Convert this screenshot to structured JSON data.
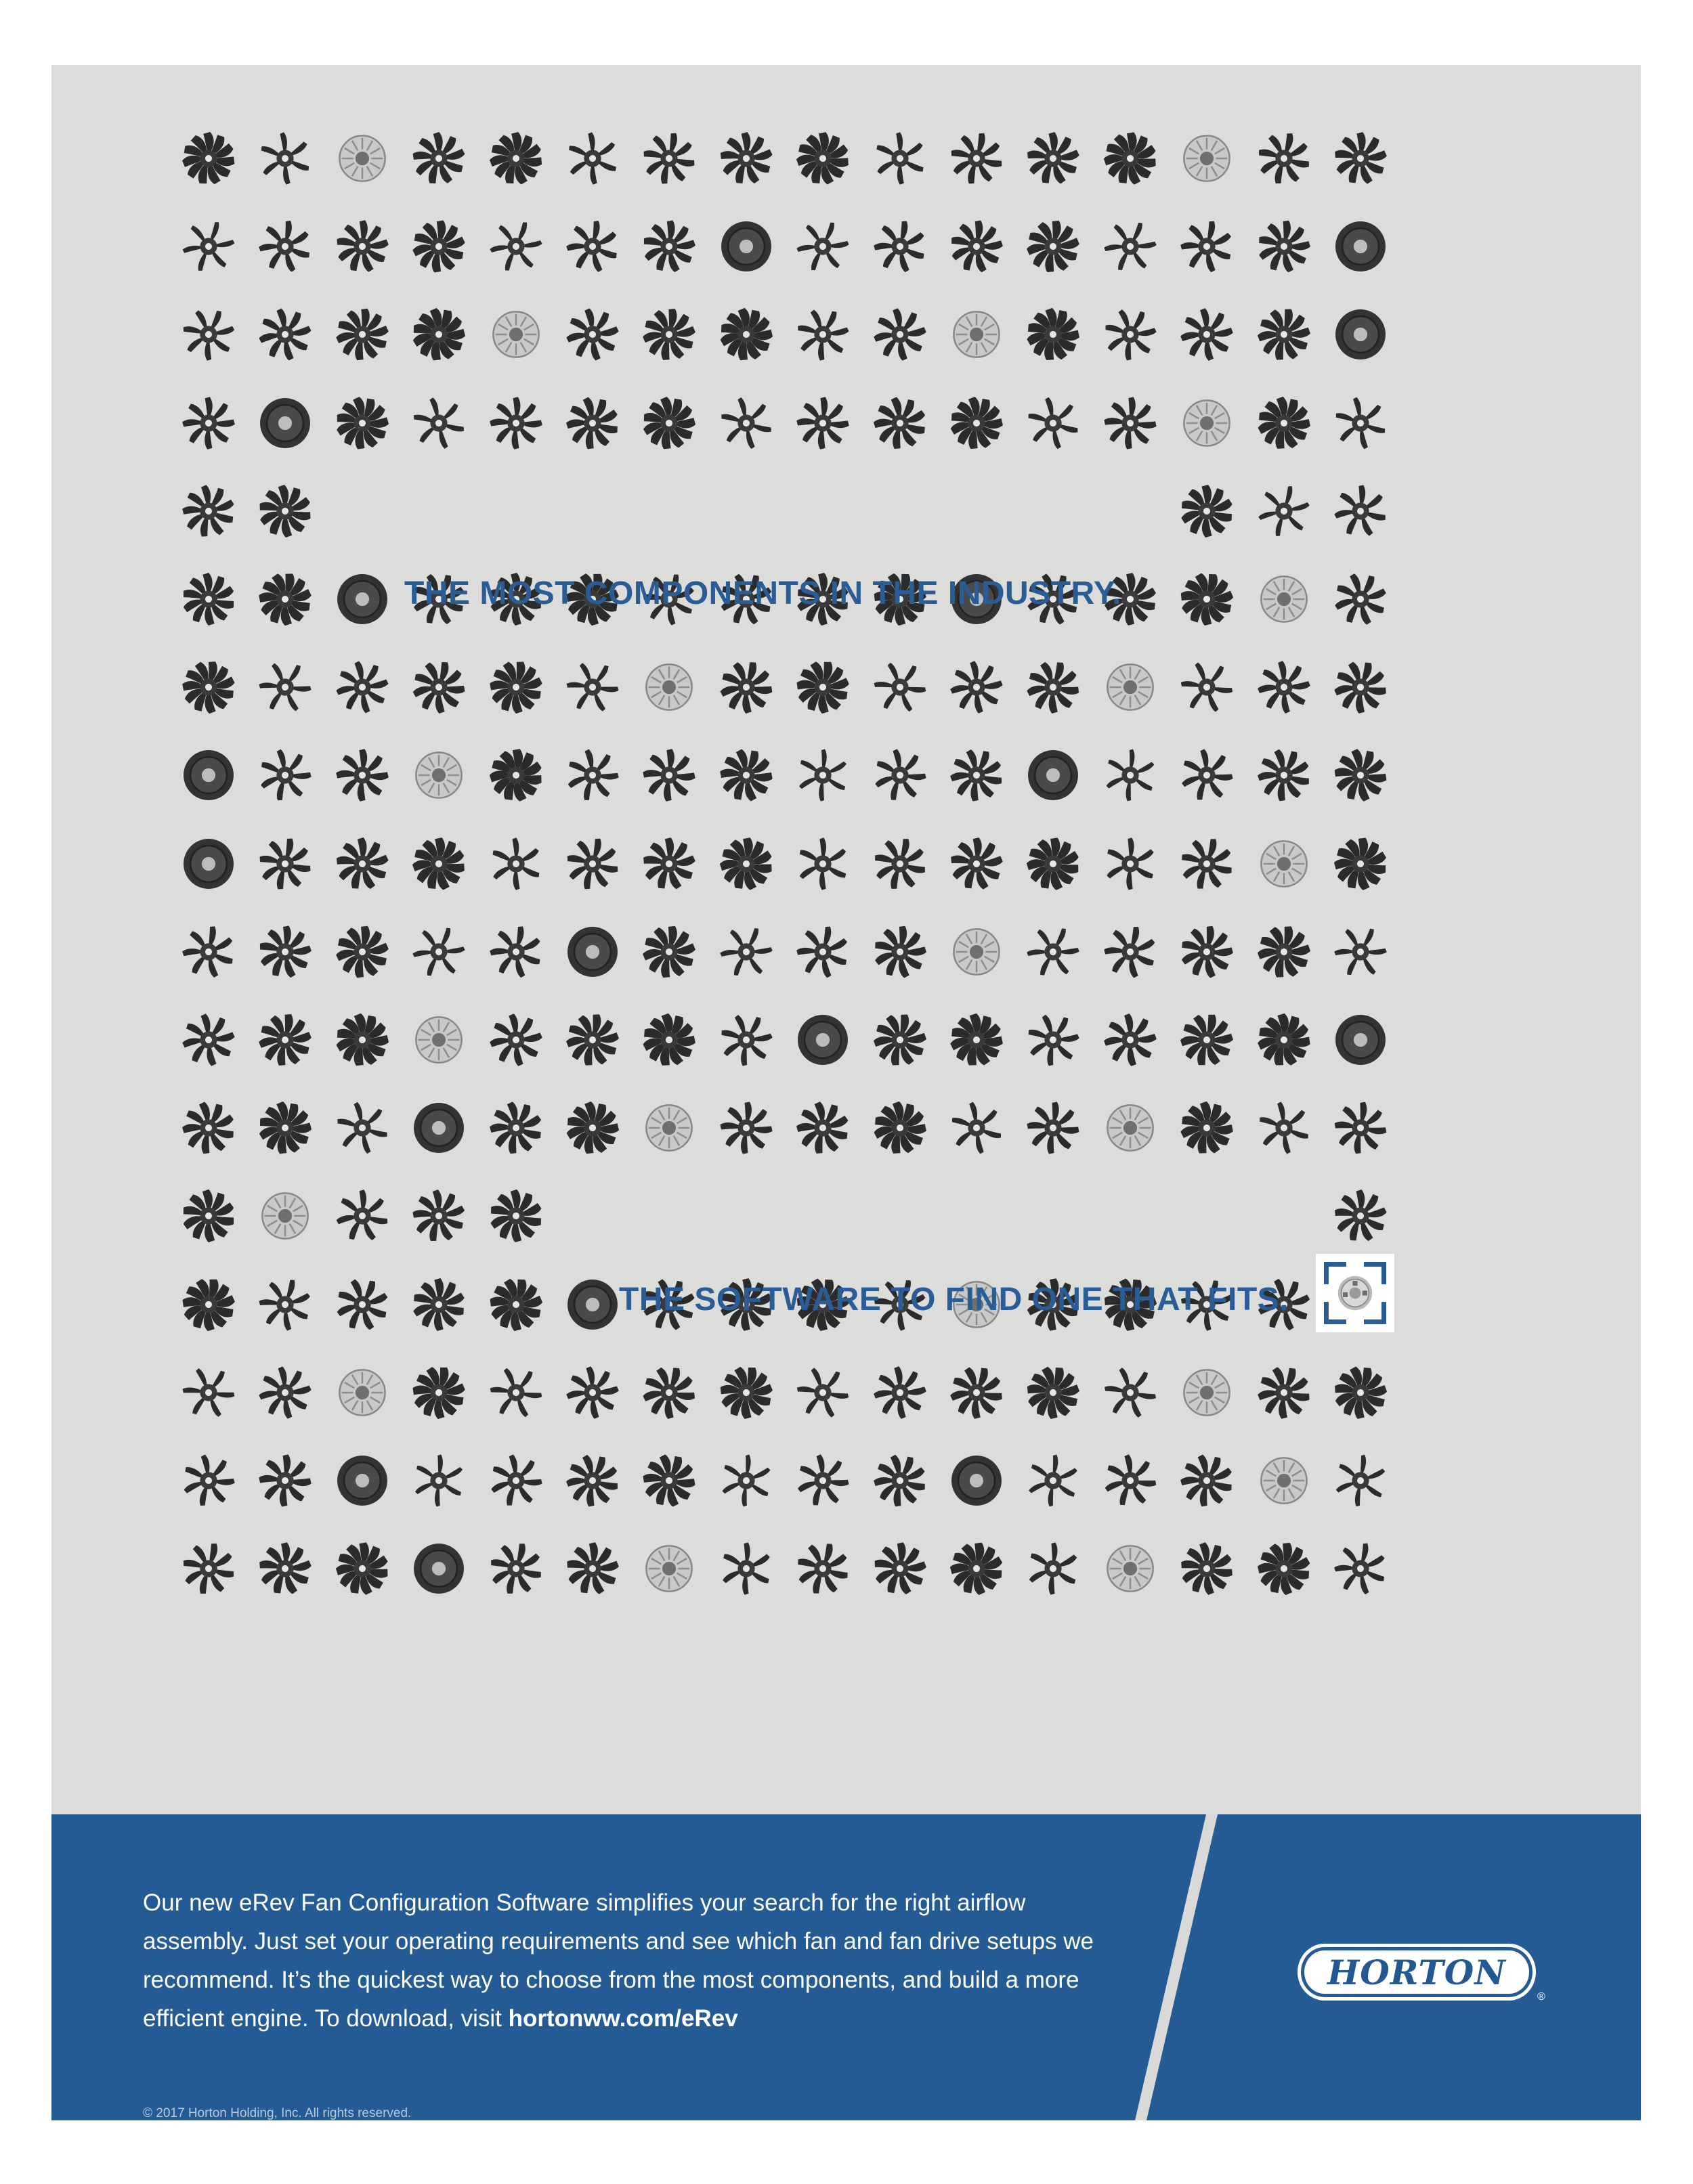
{
  "headlines": {
    "top": "THE MOST COMPONENTS IN THE INDUSTRY.",
    "bottom": "THE SOFTWARE TO FIND ONE THAT FITS."
  },
  "footer": {
    "body_lead": "Our new eRev Fan Configuration Software simplifies your search for the right airflow assembly. Just set your operating requirements and see which fan and fan drive setups we recommend. It’s the quickest way to choose from the most components, and build a more efficient engine. To download, visit ",
    "url": "hortonww.com/eRev",
    "copyright": "© 2017 Horton Holding, Inc. All rights reserved."
  },
  "logo": {
    "brand": "HORTON",
    "registered": "®"
  },
  "icons": {
    "fan_blade": "fan-blade-icon",
    "fan_drive": "fan-drive-icon",
    "fan_clutch": "fan-clutch-icon"
  },
  "colors": {
    "background": "#dcdcda",
    "headline_blue": "#2a5c96",
    "footer_blue": "#255b95",
    "fan_dark": "#2b2b2b",
    "clutch_silver": "#c9c9c9"
  }
}
